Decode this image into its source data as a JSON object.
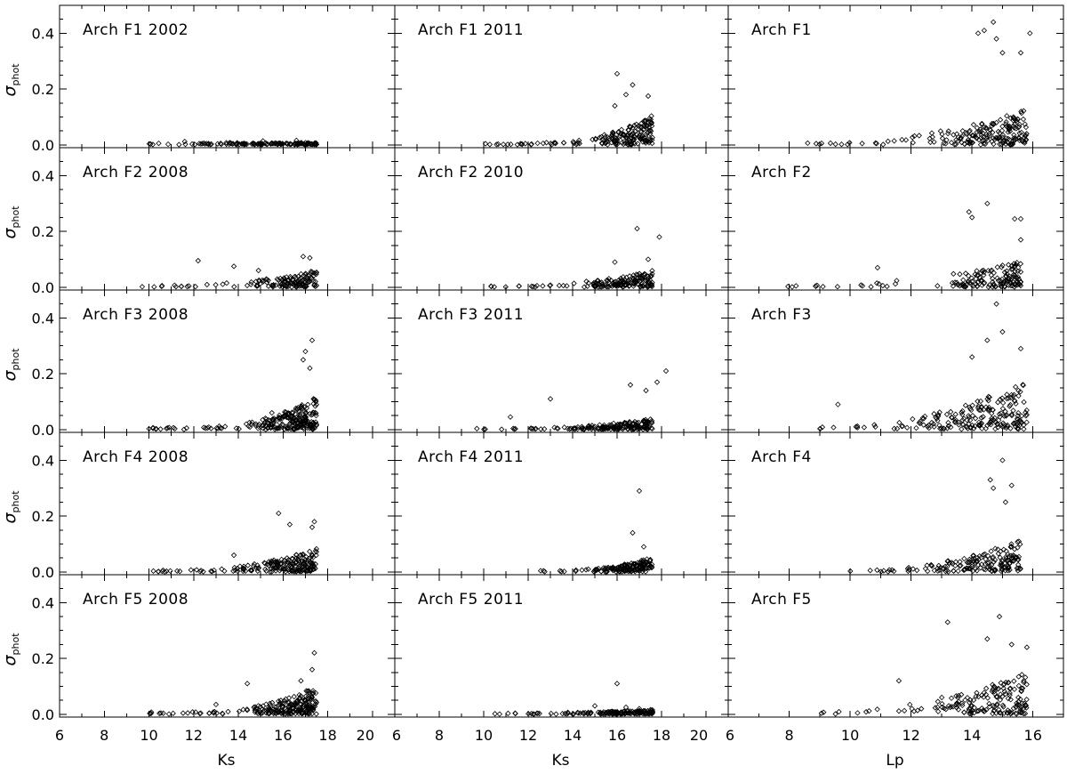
{
  "figure": {
    "ylabel_symbol": "σ",
    "ylabel_sub": "phot"
  },
  "chart_data": [
    {
      "type": "scatter",
      "panel": "Arch F1 2002",
      "title": "Arch F1 2002",
      "xlabel": "",
      "ylabel": "σphot",
      "xlim": [
        6,
        21
      ],
      "ylim": [
        -0.01,
        0.5
      ],
      "x_ticks": [
        6,
        8,
        10,
        12,
        14,
        16,
        18,
        20
      ],
      "y_ticks": [
        0.0,
        0.2,
        0.4
      ],
      "x_min": 10.0,
      "x_max": 17.5,
      "y_base": 0.003,
      "y_scale": 0.0008,
      "y_power": 3.0,
      "n": 140,
      "dense_start": 12.5,
      "outliers": [
        [
          11.6,
          0.012
        ],
        [
          15.1,
          0.014
        ],
        [
          16.6,
          0.016
        ]
      ]
    },
    {
      "type": "scatter",
      "panel": "Arch F1 2011",
      "title": "Arch F1 2011",
      "xlabel": "",
      "ylabel": "σphot",
      "xlim": [
        6,
        21
      ],
      "ylim": [
        -0.01,
        0.5
      ],
      "x_ticks": [
        6,
        8,
        10,
        12,
        14,
        16,
        18,
        20
      ],
      "y_ticks": [
        0.0,
        0.2,
        0.4
      ],
      "x_min": 10.0,
      "x_max": 17.6,
      "y_base": 0.002,
      "y_scale": 0.065,
      "y_power": 3.4,
      "n": 180,
      "dense_start": 15.0,
      "outliers": [
        [
          16.0,
          0.255
        ],
        [
          16.7,
          0.215
        ],
        [
          17.4,
          0.175
        ],
        [
          16.4,
          0.18
        ],
        [
          15.9,
          0.14
        ]
      ]
    },
    {
      "type": "scatter",
      "panel": "Arch F1",
      "title": "Arch F1",
      "xlabel": "",
      "ylabel": "σphot",
      "xlim": [
        6,
        17
      ],
      "ylim": [
        -0.01,
        0.5
      ],
      "x_ticks": [
        6,
        8,
        10,
        12,
        14,
        16
      ],
      "y_ticks": [
        0.0,
        0.2,
        0.4
      ],
      "x_min": 8.5,
      "x_max": 15.8,
      "y_base": 0.003,
      "y_scale": 0.075,
      "y_power": 2.1,
      "n": 190,
      "dense_start": 12.5,
      "outliers": [
        [
          14.7,
          0.44
        ],
        [
          14.4,
          0.41
        ],
        [
          14.2,
          0.4
        ],
        [
          15.9,
          0.4
        ],
        [
          14.8,
          0.38
        ],
        [
          15.0,
          0.33
        ],
        [
          15.6,
          0.33
        ]
      ]
    },
    {
      "type": "scatter",
      "panel": "Arch F2 2008",
      "title": "Arch F2 2008",
      "xlabel": "",
      "ylabel": "σphot",
      "xlim": [
        6,
        21
      ],
      "ylim": [
        -0.01,
        0.5
      ],
      "x_ticks": [
        6,
        8,
        10,
        12,
        14,
        16,
        18,
        20
      ],
      "y_ticks": [
        0.0,
        0.2,
        0.4
      ],
      "x_min": 9.5,
      "x_max": 17.5,
      "y_base": 0.003,
      "y_scale": 0.035,
      "y_power": 2.6,
      "n": 140,
      "dense_start": 14.5,
      "outliers": [
        [
          12.2,
          0.095
        ],
        [
          13.8,
          0.075
        ],
        [
          17.2,
          0.105
        ],
        [
          16.9,
          0.11
        ],
        [
          14.9,
          0.06
        ]
      ]
    },
    {
      "type": "scatter",
      "panel": "Arch F2 2010",
      "title": "Arch F2 2010",
      "xlabel": "",
      "ylabel": "σphot",
      "xlim": [
        6,
        21
      ],
      "ylim": [
        -0.01,
        0.5
      ],
      "x_ticks": [
        6,
        8,
        10,
        12,
        14,
        16,
        18,
        20
      ],
      "y_ticks": [
        0.0,
        0.2,
        0.4
      ],
      "x_min": 10.0,
      "x_max": 17.6,
      "y_base": 0.002,
      "y_scale": 0.035,
      "y_power": 2.4,
      "n": 160,
      "dense_start": 14.5,
      "outliers": [
        [
          16.9,
          0.21
        ],
        [
          17.9,
          0.18
        ],
        [
          17.4,
          0.1
        ],
        [
          15.9,
          0.09
        ]
      ]
    },
    {
      "type": "scatter",
      "panel": "Arch F2",
      "title": "Arch F2",
      "xlabel": "",
      "ylabel": "σphot",
      "xlim": [
        6,
        17
      ],
      "ylim": [
        -0.01,
        0.5
      ],
      "x_ticks": [
        6,
        8,
        10,
        12,
        14,
        16
      ],
      "y_ticks": [
        0.0,
        0.2,
        0.4
      ],
      "x_min": 7.5,
      "x_max": 15.6,
      "y_base": 0.003,
      "y_scale": 0.055,
      "y_power": 2.3,
      "n": 150,
      "dense_start": 13.0,
      "outliers": [
        [
          14.5,
          0.3
        ],
        [
          13.9,
          0.27
        ],
        [
          14.0,
          0.25
        ],
        [
          15.4,
          0.245
        ],
        [
          15.6,
          0.245
        ],
        [
          10.9,
          0.07
        ],
        [
          15.6,
          0.17
        ]
      ]
    },
    {
      "type": "scatter",
      "panel": "Arch F3 2008",
      "title": "Arch F3 2008",
      "xlabel": "",
      "ylabel": "σphot",
      "xlim": [
        6,
        21
      ],
      "ylim": [
        -0.01,
        0.5
      ],
      "x_ticks": [
        6,
        8,
        10,
        12,
        14,
        16,
        18,
        20
      ],
      "y_ticks": [
        0.0,
        0.2,
        0.4
      ],
      "x_min": 10.0,
      "x_max": 17.5,
      "y_base": 0.003,
      "y_scale": 0.07,
      "y_power": 3.2,
      "n": 230,
      "dense_start": 14.5,
      "outliers": [
        [
          17.3,
          0.32
        ],
        [
          17.0,
          0.28
        ],
        [
          16.9,
          0.25
        ],
        [
          17.2,
          0.22
        ],
        [
          15.5,
          0.06
        ]
      ]
    },
    {
      "type": "scatter",
      "panel": "Arch F3 2011",
      "title": "Arch F3 2011",
      "xlabel": "",
      "ylabel": "σphot",
      "xlim": [
        6,
        21
      ],
      "ylim": [
        -0.01,
        0.5
      ],
      "x_ticks": [
        6,
        8,
        10,
        12,
        14,
        16,
        18,
        20
      ],
      "y_ticks": [
        0.0,
        0.2,
        0.4
      ],
      "x_min": 9.5,
      "x_max": 17.6,
      "y_base": 0.002,
      "y_scale": 0.022,
      "y_power": 2.8,
      "n": 170,
      "dense_start": 14.0,
      "outliers": [
        [
          18.2,
          0.21
        ],
        [
          17.8,
          0.17
        ],
        [
          16.6,
          0.16
        ],
        [
          17.3,
          0.14
        ],
        [
          13.0,
          0.11
        ],
        [
          11.2,
          0.045
        ]
      ]
    },
    {
      "type": "scatter",
      "panel": "Arch F3",
      "title": "Arch F3",
      "xlabel": "",
      "ylabel": "σphot",
      "xlim": [
        6,
        17
      ],
      "ylim": [
        -0.01,
        0.5
      ],
      "x_ticks": [
        6,
        8,
        10,
        12,
        14,
        16
      ],
      "y_ticks": [
        0.0,
        0.2,
        0.4
      ],
      "x_min": 9.0,
      "x_max": 15.8,
      "y_base": 0.004,
      "y_scale": 0.1,
      "y_power": 1.9,
      "n": 200,
      "dense_start": 12.0,
      "outliers": [
        [
          14.8,
          0.45
        ],
        [
          15.0,
          0.35
        ],
        [
          14.5,
          0.32
        ],
        [
          15.6,
          0.29
        ],
        [
          14.0,
          0.26
        ],
        [
          9.6,
          0.09
        ]
      ]
    },
    {
      "type": "scatter",
      "panel": "Arch F4 2008",
      "title": "Arch F4 2008",
      "xlabel": "",
      "ylabel": "σphot",
      "xlim": [
        6,
        21
      ],
      "ylim": [
        -0.01,
        0.5
      ],
      "x_ticks": [
        6,
        8,
        10,
        12,
        14,
        16,
        18,
        20
      ],
      "y_ticks": [
        0.0,
        0.2,
        0.4
      ],
      "x_min": 10.0,
      "x_max": 17.5,
      "y_base": 0.003,
      "y_scale": 0.05,
      "y_power": 2.8,
      "n": 190,
      "dense_start": 14.0,
      "outliers": [
        [
          15.8,
          0.21
        ],
        [
          17.4,
          0.18
        ],
        [
          16.3,
          0.17
        ],
        [
          17.3,
          0.16
        ],
        [
          13.8,
          0.06
        ]
      ]
    },
    {
      "type": "scatter",
      "panel": "Arch F4 2011",
      "title": "Arch F4 2011",
      "xlabel": "",
      "ylabel": "σphot",
      "xlim": [
        6,
        21
      ],
      "ylim": [
        -0.01,
        0.5
      ],
      "x_ticks": [
        6,
        8,
        10,
        12,
        14,
        16,
        18,
        20
      ],
      "y_ticks": [
        0.0,
        0.2,
        0.4
      ],
      "x_min": 12.5,
      "x_max": 17.6,
      "y_base": 0.002,
      "y_scale": 0.03,
      "y_power": 2.5,
      "n": 150,
      "dense_start": 14.5,
      "outliers": [
        [
          17.0,
          0.29
        ],
        [
          16.7,
          0.14
        ],
        [
          17.2,
          0.09
        ]
      ]
    },
    {
      "type": "scatter",
      "panel": "Arch F4",
      "title": "Arch F4",
      "xlabel": "",
      "ylabel": "σphot",
      "xlim": [
        6,
        17
      ],
      "ylim": [
        -0.01,
        0.5
      ],
      "x_ticks": [
        6,
        8,
        10,
        12,
        14,
        16
      ],
      "y_ticks": [
        0.0,
        0.2,
        0.4
      ],
      "x_min": 10.0,
      "x_max": 15.6,
      "y_base": 0.003,
      "y_scale": 0.07,
      "y_power": 2.2,
      "n": 170,
      "dense_start": 12.5,
      "outliers": [
        [
          15.0,
          0.4
        ],
        [
          14.6,
          0.33
        ],
        [
          14.7,
          0.3
        ],
        [
          15.3,
          0.31
        ],
        [
          15.1,
          0.25
        ]
      ]
    },
    {
      "type": "scatter",
      "panel": "Arch F5 2008",
      "title": "Arch F5 2008",
      "xlabel": "Ks",
      "ylabel": "σphot",
      "xlim": [
        6,
        21
      ],
      "ylim": [
        -0.01,
        0.5
      ],
      "x_ticks": [
        6,
        8,
        10,
        12,
        14,
        16,
        18,
        20
      ],
      "y_ticks": [
        0.0,
        0.2,
        0.4
      ],
      "x_min": 10.0,
      "x_max": 17.5,
      "y_base": 0.003,
      "y_scale": 0.06,
      "y_power": 3.0,
      "n": 220,
      "dense_start": 14.5,
      "outliers": [
        [
          17.4,
          0.22
        ],
        [
          17.3,
          0.16
        ],
        [
          14.4,
          0.11
        ],
        [
          16.8,
          0.12
        ],
        [
          13.0,
          0.035
        ]
      ]
    },
    {
      "type": "scatter",
      "panel": "Arch F5 2011",
      "title": "Arch F5 2011",
      "xlabel": "Ks",
      "ylabel": "σphot",
      "xlim": [
        6,
        21
      ],
      "ylim": [
        -0.01,
        0.5
      ],
      "x_ticks": [
        6,
        8,
        10,
        12,
        14,
        16,
        18,
        20
      ],
      "y_ticks": [
        0.0,
        0.2,
        0.4
      ],
      "x_min": 10.5,
      "x_max": 17.6,
      "y_base": 0.002,
      "y_scale": 0.008,
      "y_power": 2.5,
      "n": 160,
      "dense_start": 13.5,
      "outliers": [
        [
          16.0,
          0.11
        ],
        [
          15.0,
          0.03
        ],
        [
          16.4,
          0.025
        ],
        [
          17.0,
          0.02
        ]
      ]
    },
    {
      "type": "scatter",
      "panel": "Arch F5",
      "title": "Arch F5",
      "xlabel": "Lp",
      "ylabel": "σphot",
      "xlim": [
        6,
        17
      ],
      "ylim": [
        -0.01,
        0.5
      ],
      "x_ticks": [
        6,
        8,
        10,
        12,
        14,
        16
      ],
      "y_ticks": [
        0.0,
        0.2,
        0.4
      ],
      "x_min": 9.0,
      "x_max": 15.8,
      "y_base": 0.004,
      "y_scale": 0.09,
      "y_power": 2.0,
      "n": 170,
      "dense_start": 12.5,
      "outliers": [
        [
          13.2,
          0.33
        ],
        [
          14.9,
          0.35
        ],
        [
          14.5,
          0.27
        ],
        [
          15.3,
          0.25
        ],
        [
          15.8,
          0.24
        ],
        [
          15.7,
          0.12
        ],
        [
          11.6,
          0.12
        ]
      ]
    }
  ]
}
